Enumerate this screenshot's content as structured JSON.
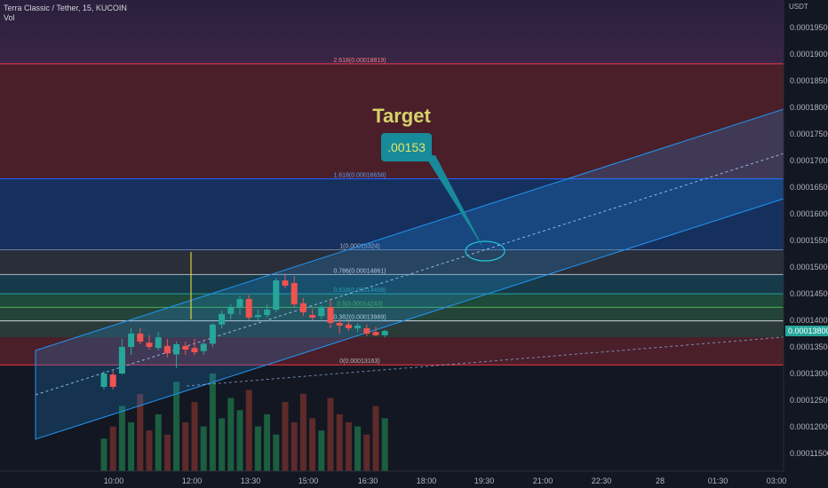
{
  "header": {
    "symbol_line": "Terra Classic / Tether, 15, KUCOIN",
    "volume_label": "Vol"
  },
  "price_axis": {
    "unit": "USDT",
    "ticks": [
      "0.00019500",
      "0.00019000",
      "0.00018500",
      "0.00018000",
      "0.00017500",
      "0.00017000",
      "0.00016500",
      "0.00016000",
      "0.00015500",
      "0.00015000",
      "0.00014500",
      "0.00014000",
      "0.00013500",
      "0.00013000",
      "0.00012500",
      "0.00012000",
      "0.00011500"
    ],
    "current_price": "0.00013800"
  },
  "time_axis": {
    "ticks": [
      "10:00",
      "12:00",
      "13:30",
      "15:00",
      "16:30",
      "18:00",
      "19:30",
      "21:00",
      "22:30",
      "28",
      "01:30",
      "03:00"
    ]
  },
  "fib_levels": [
    {
      "label": "2.618(0.00018819)",
      "value": 0.00018819
    },
    {
      "label": "1.618(0.00016658)",
      "value": 0.00016658
    },
    {
      "label": "1(0.00015324)",
      "value": 0.00015324
    },
    {
      "label": "0.786(0.00014861)",
      "value": 0.00014861
    },
    {
      "label": "0.618(0.00014498)",
      "value": 0.00014498
    },
    {
      "label": "0.5(0.00014243)",
      "value": 0.00014243
    },
    {
      "label": "0.382(0.00013989)",
      "value": 0.00013989
    },
    {
      "label": "0(0.00013163)",
      "value": 0.00013163
    }
  ],
  "annotation": {
    "title": "Target",
    "callout": ".00153"
  },
  "colors": {
    "up": "#26a69a",
    "down": "#ef5350",
    "channel": "#2196f3",
    "target_text": "#d6d36a",
    "callout_bg": "#178b9a"
  },
  "chart_data": {
    "type": "candlestick",
    "ylim": [
      0.000113,
      0.000198
    ],
    "candles": [
      {
        "o": 0.0001275,
        "h": 0.0001305,
        "l": 0.000127,
        "c": 0.00013
      },
      {
        "o": 0.0001298,
        "h": 0.0001305,
        "l": 0.000127,
        "c": 0.0001275
      },
      {
        "o": 0.00013,
        "h": 0.0001365,
        "l": 0.0001298,
        "c": 0.000135
      },
      {
        "o": 0.000135,
        "h": 0.0001385,
        "l": 0.0001335,
        "c": 0.0001375
      },
      {
        "o": 0.0001375,
        "h": 0.0001385,
        "l": 0.0001355,
        "c": 0.000136
      },
      {
        "o": 0.0001358,
        "h": 0.0001372,
        "l": 0.0001345,
        "c": 0.000135
      },
      {
        "o": 0.0001348,
        "h": 0.0001378,
        "l": 0.0001343,
        "c": 0.0001368
      },
      {
        "o": 0.0001352,
        "h": 0.0001365,
        "l": 0.000133,
        "c": 0.0001338
      },
      {
        "o": 0.0001336,
        "h": 0.000136,
        "l": 0.000131,
        "c": 0.0001355
      },
      {
        "o": 0.0001352,
        "h": 0.000136,
        "l": 0.0001335,
        "c": 0.0001345
      },
      {
        "o": 0.0001348,
        "h": 0.0001365,
        "l": 0.0001335,
        "c": 0.000134
      },
      {
        "o": 0.0001342,
        "h": 0.000136,
        "l": 0.0001335,
        "c": 0.0001356
      },
      {
        "o": 0.0001356,
        "h": 0.0001395,
        "l": 0.000135,
        "c": 0.0001392
      },
      {
        "o": 0.0001392,
        "h": 0.0001418,
        "l": 0.0001385,
        "c": 0.0001412
      },
      {
        "o": 0.0001412,
        "h": 0.000143,
        "l": 0.0001402,
        "c": 0.0001425
      },
      {
        "o": 0.0001425,
        "h": 0.0001445,
        "l": 0.000141,
        "c": 0.000144
      },
      {
        "o": 0.000144,
        "h": 0.0001448,
        "l": 0.00014,
        "c": 0.0001405
      },
      {
        "o": 0.0001406,
        "h": 0.000142,
        "l": 0.00014,
        "c": 0.000141
      },
      {
        "o": 0.000141,
        "h": 0.000143,
        "l": 0.0001405,
        "c": 0.000142
      },
      {
        "o": 0.000142,
        "h": 0.000148,
        "l": 0.0001415,
        "c": 0.0001475
      },
      {
        "o": 0.0001475,
        "h": 0.0001485,
        "l": 0.000146,
        "c": 0.0001465
      },
      {
        "o": 0.000147,
        "h": 0.0001483,
        "l": 0.0001425,
        "c": 0.000143
      },
      {
        "o": 0.0001432,
        "h": 0.0001442,
        "l": 0.0001408,
        "c": 0.0001415
      },
      {
        "o": 0.000141,
        "h": 0.0001422,
        "l": 0.00014,
        "c": 0.0001405
      },
      {
        "o": 0.0001408,
        "h": 0.0001428,
        "l": 0.0001402,
        "c": 0.0001425
      },
      {
        "o": 0.0001425,
        "h": 0.000144,
        "l": 0.0001385,
        "c": 0.0001395
      },
      {
        "o": 0.0001395,
        "h": 0.0001402,
        "l": 0.0001375,
        "c": 0.000139
      },
      {
        "o": 0.0001392,
        "h": 0.0001398,
        "l": 0.000138,
        "c": 0.0001385
      },
      {
        "o": 0.0001385,
        "h": 0.0001395,
        "l": 0.0001378,
        "c": 0.000139
      },
      {
        "o": 0.0001385,
        "h": 0.0001392,
        "l": 0.000137,
        "c": 0.0001375
      },
      {
        "o": 0.0001378,
        "h": 0.0001388,
        "l": 0.000137,
        "c": 0.0001372
      },
      {
        "o": 0.0001372,
        "h": 0.0001382,
        "l": 0.0001368,
        "c": 0.000138
      }
    ],
    "volumes": [
      40,
      55,
      80,
      60,
      95,
      50,
      70,
      45,
      110,
      60,
      85,
      55,
      120,
      65,
      90,
      75,
      100,
      55,
      70,
      45,
      85,
      60,
      95,
      65,
      50,
      90,
      70,
      60,
      55,
      45,
      80,
      65
    ]
  }
}
